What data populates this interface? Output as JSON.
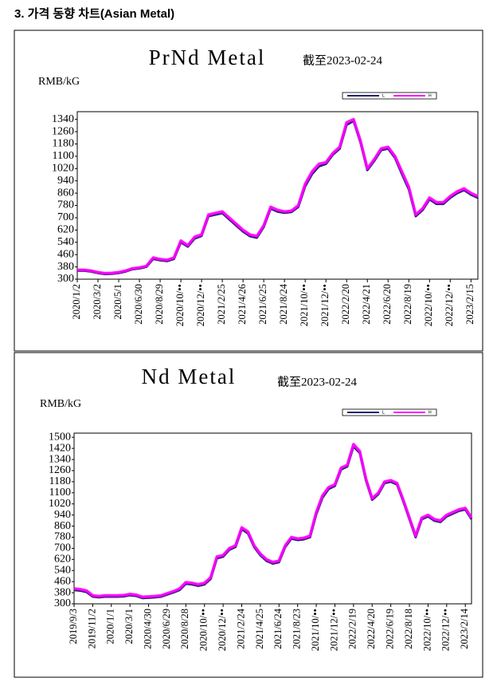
{
  "heading": "3. 가격 동향 차트(Asian Metal)",
  "chart_data": [
    {
      "type": "line",
      "title": "PrNd Metal",
      "subtitle": "截至2023-02-24",
      "y_label": "RMB/kG",
      "categories": [
        "2020/1/2",
        null,
        null,
        "2020/3/2",
        null,
        null,
        "2020/5/1",
        null,
        null,
        "2020/6/30",
        null,
        null,
        "2020/8/29",
        null,
        null,
        "2020/10/••",
        null,
        null,
        "2020/12/••",
        null,
        null,
        "2021/2/25",
        null,
        null,
        "2021/4/26",
        null,
        null,
        "2021/6/25",
        null,
        null,
        "2021/8/24",
        null,
        null,
        "2021/10/••",
        null,
        null,
        "2021/12/••",
        null,
        null,
        "2022/2/20",
        null,
        null,
        "2022/4/21",
        null,
        null,
        "2022/6/20",
        null,
        null,
        "2022/8/19",
        null,
        null,
        "2022/10/••",
        null,
        null,
        "2022/12/••",
        null,
        null,
        "2023/2/15",
        null
      ],
      "series": [
        {
          "name": "L",
          "color": "#1f1f6e",
          "values": [
            355,
            355,
            350,
            340,
            333,
            335,
            340,
            350,
            365,
            370,
            380,
            432,
            423,
            418,
            432,
            540,
            512,
            565,
            582,
            710,
            720,
            730,
            690,
            650,
            610,
            580,
            570,
            640,
            760,
            740,
            732,
            737,
            770,
            905,
            985,
            1035,
            1050,
            1110,
            1150,
            1305,
            1330,
            1190,
            1010,
            1070,
            1140,
            1150,
            1090,
            985,
            885,
            710,
            750,
            820,
            790,
            790,
            830,
            860,
            880,
            850,
            830
          ]
        },
        {
          "name": "H",
          "color": "#ff00ff",
          "values": [
            360,
            360,
            355,
            345,
            338,
            340,
            345,
            355,
            370,
            375,
            385,
            440,
            430,
            425,
            440,
            550,
            520,
            575,
            590,
            720,
            730,
            740,
            700,
            660,
            620,
            590,
            580,
            650,
            770,
            750,
            740,
            745,
            780,
            920,
            1000,
            1050,
            1060,
            1120,
            1160,
            1320,
            1340,
            1200,
            1020,
            1080,
            1150,
            1160,
            1100,
            1000,
            900,
            720,
            760,
            830,
            800,
            800,
            840,
            870,
            890,
            860,
            840
          ]
        }
      ],
      "ylim": [
        300,
        1390
      ],
      "yticks": [
        300,
        380,
        460,
        540,
        620,
        700,
        780,
        860,
        940,
        1020,
        1100,
        1180,
        1260,
        1340
      ],
      "grid": false
    },
    {
      "type": "line",
      "title": "Nd Metal",
      "subtitle": "截至2023-02-24",
      "y_label": "RMB/kG",
      "categories": [
        "2019/9/3",
        null,
        null,
        "2019/11/2",
        null,
        null,
        "2020/1/1",
        null,
        null,
        "2020/3/1",
        null,
        null,
        "2020/4/30",
        null,
        null,
        "2020/6/29",
        null,
        null,
        "2020/8/28",
        null,
        null,
        "2020/10/••",
        null,
        null,
        "2020/12/••",
        null,
        null,
        "2021/2/24",
        null,
        null,
        "2021/4/25",
        null,
        null,
        "2021/6/24",
        null,
        null,
        "2021/8/23",
        null,
        null,
        "2021/10/••",
        null,
        null,
        "2021/12/••",
        null,
        null,
        "2022/2/19",
        null,
        null,
        "2022/4/20",
        null,
        null,
        "2022/6/19",
        null,
        null,
        "2022/8/18",
        null,
        null,
        "2022/10/••",
        null,
        null,
        "2022/12/••",
        null,
        null,
        "2023/2/14",
        null
      ],
      "series": [
        {
          "name": "L",
          "color": "#1f1f6e",
          "values": [
            400,
            395,
            385,
            352,
            347,
            352,
            352,
            352,
            354,
            362,
            357,
            342,
            344,
            347,
            352,
            367,
            382,
            400,
            445,
            440,
            430,
            440,
            480,
            628,
            640,
            690,
            710,
            838,
            808,
            710,
            650,
            610,
            590,
            600,
            710,
            770,
            760,
            765,
            780,
            945,
            1065,
            1128,
            1150,
            1268,
            1290,
            1435,
            1388,
            1190,
            1050,
            1090,
            1170,
            1180,
            1160,
            1040,
            910,
            780,
            910,
            930,
            900,
            890,
            930,
            950,
            970,
            980,
            910
          ]
        },
        {
          "name": "H",
          "color": "#ff00ff",
          "values": [
            410,
            405,
            395,
            360,
            355,
            360,
            360,
            360,
            362,
            370,
            365,
            350,
            352,
            355,
            360,
            375,
            390,
            410,
            455,
            450,
            440,
            450,
            490,
            640,
            650,
            700,
            720,
            850,
            820,
            720,
            660,
            620,
            600,
            610,
            720,
            780,
            770,
            775,
            790,
            960,
            1080,
            1140,
            1160,
            1280,
            1300,
            1450,
            1400,
            1200,
            1060,
            1100,
            1180,
            1190,
            1170,
            1050,
            920,
            790,
            920,
            940,
            910,
            900,
            940,
            960,
            980,
            990,
            920
          ]
        }
      ],
      "ylim": [
        300,
        1530
      ],
      "yticks": [
        300,
        380,
        460,
        540,
        620,
        700,
        780,
        860,
        940,
        1020,
        1100,
        1180,
        1260,
        1340,
        1420,
        1500
      ],
      "grid": false
    }
  ]
}
